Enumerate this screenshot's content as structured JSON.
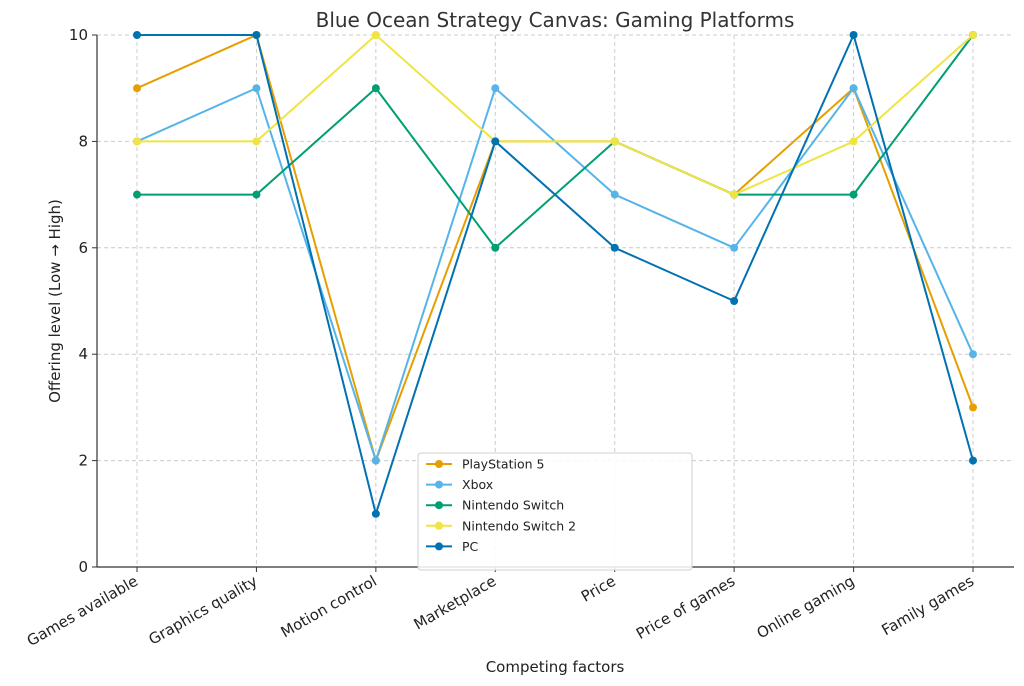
{
  "chart_data": {
    "type": "line",
    "title": "Blue Ocean Strategy Canvas: Gaming Platforms",
    "xlabel": "Competing factors",
    "ylabel": "Offering level (Low → High)",
    "categories": [
      "Games available",
      "Graphics quality",
      "Motion control",
      "Marketplace",
      "Price",
      "Price of games",
      "Online gaming",
      "Family games"
    ],
    "ylim": [
      0,
      10
    ],
    "yticks": [
      0,
      2,
      4,
      6,
      8,
      10
    ],
    "grid": true,
    "legend_position": "bottom-center",
    "series": [
      {
        "name": "PlayStation 5",
        "color": "#E69F00",
        "values": [
          9,
          10,
          2,
          8,
          8,
          7,
          9,
          3
        ]
      },
      {
        "name": "Xbox",
        "color": "#56B4E9",
        "values": [
          8,
          9,
          2,
          9,
          7,
          6,
          9,
          4
        ]
      },
      {
        "name": "Nintendo Switch",
        "color": "#009E73",
        "values": [
          7,
          7,
          9,
          6,
          8,
          7,
          7,
          10
        ]
      },
      {
        "name": "Nintendo Switch 2",
        "color": "#F0E442",
        "values": [
          8,
          8,
          10,
          8,
          8,
          7,
          8,
          10
        ]
      },
      {
        "name": "PC",
        "color": "#0072B2",
        "values": [
          10,
          10,
          1,
          8,
          6,
          5,
          10,
          2
        ]
      }
    ]
  }
}
